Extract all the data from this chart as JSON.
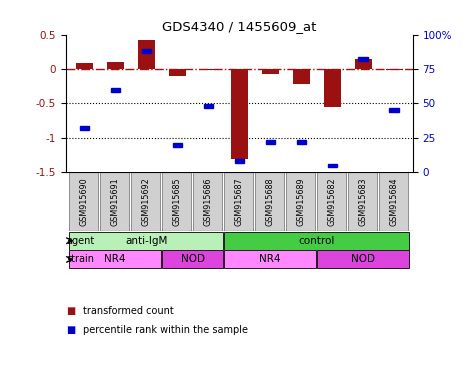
{
  "title": "GDS4340 / 1455609_at",
  "samples": [
    "GSM915690",
    "GSM915691",
    "GSM915692",
    "GSM915685",
    "GSM915686",
    "GSM915687",
    "GSM915688",
    "GSM915689",
    "GSM915682",
    "GSM915683",
    "GSM915684"
  ],
  "transformed_count": [
    0.08,
    0.1,
    0.42,
    -0.1,
    -0.02,
    -1.3,
    -0.07,
    -0.22,
    -0.55,
    0.15,
    -0.01
  ],
  "percentile_rank": [
    32,
    60,
    88,
    20,
    48,
    8,
    22,
    22,
    5,
    82,
    45
  ],
  "red_color": "#9B1010",
  "blue_color": "#0000CC",
  "ylim_left": [
    -1.5,
    0.5
  ],
  "ylim_right": [
    0,
    100
  ],
  "yticks_left": [
    -1.5,
    -1.0,
    -0.5,
    0.0,
    0.5
  ],
  "ytick_labels_left": [
    "-1.5",
    "-1",
    "-0.5",
    "0",
    "0.5"
  ],
  "yticks_right": [
    0,
    25,
    50,
    75,
    100
  ],
  "ytick_labels_right": [
    "0",
    "25",
    "50",
    "75",
    "100%"
  ],
  "dotted_lines": [
    -0.5,
    -1.0
  ],
  "agent_labels": [
    {
      "label": "anti-IgM",
      "start": 0,
      "end": 5,
      "color": "#B8F0B8"
    },
    {
      "label": "control",
      "start": 5,
      "end": 11,
      "color": "#44CC44"
    }
  ],
  "strain_labels": [
    {
      "label": "NR4",
      "start": 0,
      "end": 3,
      "color": "#FF88FF"
    },
    {
      "label": "NOD",
      "start": 3,
      "end": 5,
      "color": "#DD44DD"
    },
    {
      "label": "NR4",
      "start": 5,
      "end": 8,
      "color": "#FF88FF"
    },
    {
      "label": "NOD",
      "start": 8,
      "end": 11,
      "color": "#DD44DD"
    }
  ],
  "legend_red_label": "transformed count",
  "legend_blue_label": "percentile rank within the sample",
  "agent_row_label": "agent",
  "strain_row_label": "strain",
  "sample_box_color": "#D0D0D0",
  "sample_box_edge": "#808080"
}
